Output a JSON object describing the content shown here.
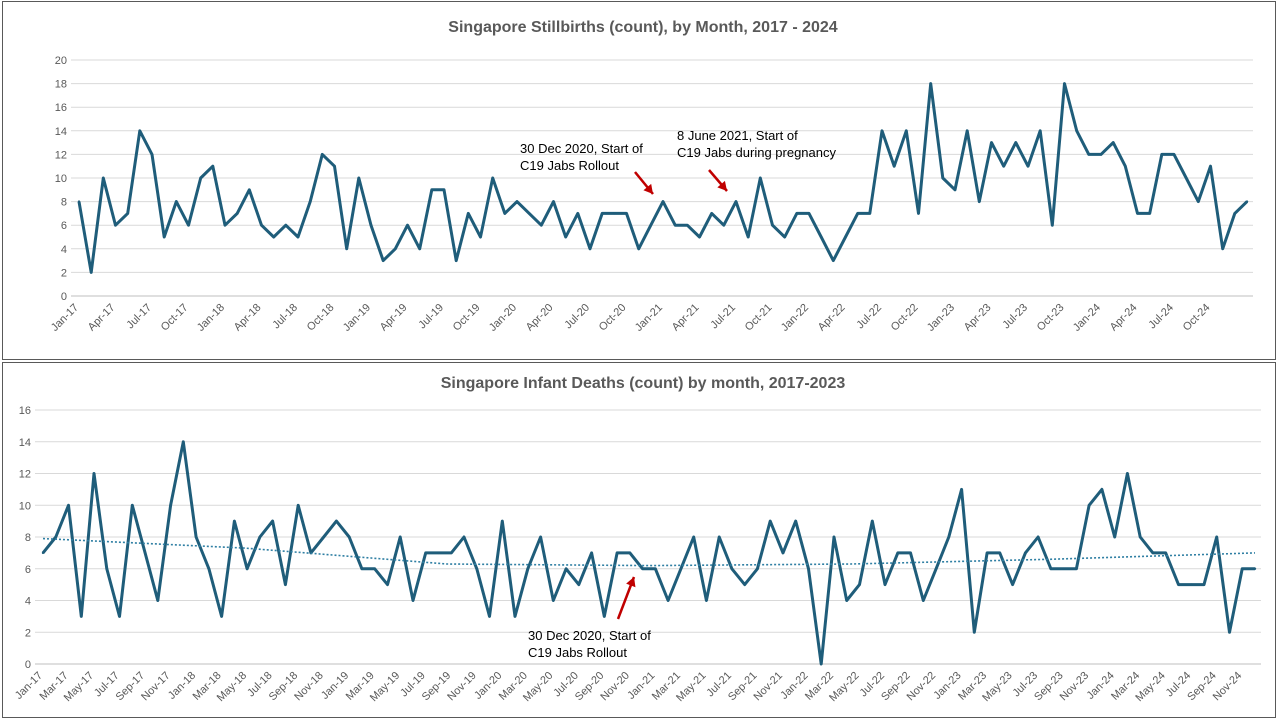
{
  "colors": {
    "series": "#1f5d7a",
    "trend": "#2f7fa3",
    "arrow": "#c00000",
    "grid": "#d9d9d9",
    "text": "#595959"
  },
  "chart_data": [
    {
      "type": "line",
      "title": "Singapore Stillbirths (count), by Month, 2017 - 2024",
      "xlabel": "",
      "ylabel": "",
      "ylim": [
        0,
        20
      ],
      "yticks": [
        "0",
        "2",
        "4",
        "6",
        "8",
        "10",
        "12",
        "14",
        "16",
        "18",
        "20"
      ],
      "grid": true,
      "x_tick_labels": [
        "Jan-17",
        "Apr-17",
        "Jul-17",
        "Oct-17",
        "Jan-18",
        "Apr-18",
        "Jul-18",
        "Oct-18",
        "Jan-19",
        "Apr-19",
        "Jul-19",
        "Oct-19",
        "Jan-20",
        "Apr-20",
        "Jul-20",
        "Oct-20",
        "Jan-21",
        "Apr-21",
        "Jul-21",
        "Oct-21",
        "Jan-22",
        "Apr-22",
        "Jul-22",
        "Oct-22",
        "Jan-23",
        "Apr-23",
        "Jul-23",
        "Oct-23",
        "Jan-24",
        "Apr-24",
        "Jul-24",
        "Oct-24"
      ],
      "series": [
        {
          "values": [
            8,
            2,
            10,
            6,
            7,
            14,
            12,
            5,
            8,
            6,
            10,
            11,
            6,
            7,
            9,
            6,
            5,
            6,
            5,
            8,
            12,
            11,
            4,
            10,
            6,
            3,
            4,
            6,
            4,
            9,
            9,
            3,
            7,
            5,
            10,
            7,
            8,
            7,
            6,
            8,
            5,
            7,
            4,
            7,
            7,
            7,
            4,
            6,
            8,
            6,
            6,
            5,
            7,
            6,
            8,
            5,
            10,
            6,
            5,
            7,
            7,
            5,
            3,
            5,
            7,
            7,
            14,
            11,
            14,
            7,
            18,
            10,
            9,
            14,
            8,
            13,
            11,
            13,
            11,
            14,
            6,
            18,
            14,
            12,
            12,
            13,
            11,
            7,
            7,
            12,
            12,
            10,
            8,
            11,
            4,
            7,
            8
          ]
        }
      ],
      "annotations": [
        {
          "lines": [
            "30 Dec 2020, Start of",
            "C19 Jabs Rollout"
          ]
        },
        {
          "lines": [
            "8 June 2021, Start of",
            "C19 Jabs during pregnancy"
          ]
        }
      ]
    },
    {
      "type": "line",
      "title": "Singapore Infant Deaths (count) by month, 2017-2023",
      "xlabel": "",
      "ylabel": "",
      "ylim": [
        0,
        16
      ],
      "yticks": [
        "0",
        "2",
        "4",
        "6",
        "8",
        "10",
        "12",
        "14",
        "16"
      ],
      "grid": true,
      "x_tick_labels": [
        "Jan-17",
        "Mar-17",
        "May-17",
        "Jul-17",
        "Sep-17",
        "Nov-17",
        "Jan-18",
        "Mar-18",
        "May-18",
        "Jul-18",
        "Sep-18",
        "Nov-18",
        "Jan-19",
        "Mar-19",
        "May-19",
        "Jul-19",
        "Sep-19",
        "Nov-19",
        "Jan-20",
        "Mar-20",
        "May-20",
        "Jul-20",
        "Sep-20",
        "Nov-20",
        "Jan-21",
        "Mar-21",
        "May-21",
        "Jul-21",
        "Sep-21",
        "Nov-21",
        "Jan-22",
        "Mar-22",
        "May-22",
        "Jul-22",
        "Sep-22",
        "Nov-22",
        "Jan-23",
        "Mar-23",
        "May-23",
        "Jul-23",
        "Sep-23",
        "Nov-23",
        "Jan-24",
        "Mar-24",
        "May-24",
        "Jul-24",
        "Sep-24",
        "Nov-24"
      ],
      "series": [
        {
          "values": [
            7,
            8,
            10,
            3,
            12,
            6,
            3,
            10,
            7,
            4,
            10,
            14,
            8,
            6,
            3,
            9,
            6,
            8,
            9,
            5,
            10,
            7,
            8,
            9,
            8,
            6,
            6,
            5,
            8,
            4,
            7,
            7,
            7,
            8,
            6,
            3,
            9,
            3,
            6,
            8,
            4,
            6,
            5,
            7,
            3,
            7,
            7,
            6,
            6,
            4,
            6,
            8,
            4,
            8,
            6,
            5,
            6,
            9,
            7,
            9,
            6,
            0,
            8,
            4,
            5,
            9,
            5,
            7,
            7,
            4,
            6,
            8,
            11,
            2,
            7,
            7,
            5,
            7,
            8,
            6,
            6,
            6,
            10,
            11,
            8,
            12,
            8,
            7,
            7,
            5,
            5,
            5,
            8,
            2,
            6,
            6
          ]
        },
        {
          "name_hidden": true,
          "values": [
            7.9,
            7.3,
            6.3,
            6.2,
            6.3,
            6.6,
            7.0
          ]
        }
      ],
      "annotations": [
        {
          "lines": [
            "30 Dec 2020, Start of",
            "C19 Jabs Rollout"
          ]
        }
      ]
    }
  ]
}
